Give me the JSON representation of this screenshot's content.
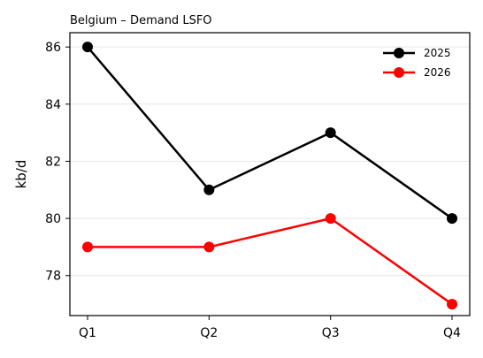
{
  "chart_data": {
    "type": "line",
    "title": "Belgium – Demand LSFO",
    "xlabel": "",
    "ylabel": "kb/d",
    "categories": [
      "Q1",
      "Q2",
      "Q3",
      "Q4"
    ],
    "ylim": [
      76.6,
      86.5
    ],
    "yticks": [
      78,
      80,
      82,
      84,
      86
    ],
    "grid": true,
    "legend_position": "top-right",
    "series": [
      {
        "name": "2025",
        "color": "#000000",
        "values": [
          86,
          81,
          83,
          80
        ]
      },
      {
        "name": "2026",
        "color": "#ff0000",
        "values": [
          79,
          79,
          80,
          77
        ]
      }
    ]
  }
}
